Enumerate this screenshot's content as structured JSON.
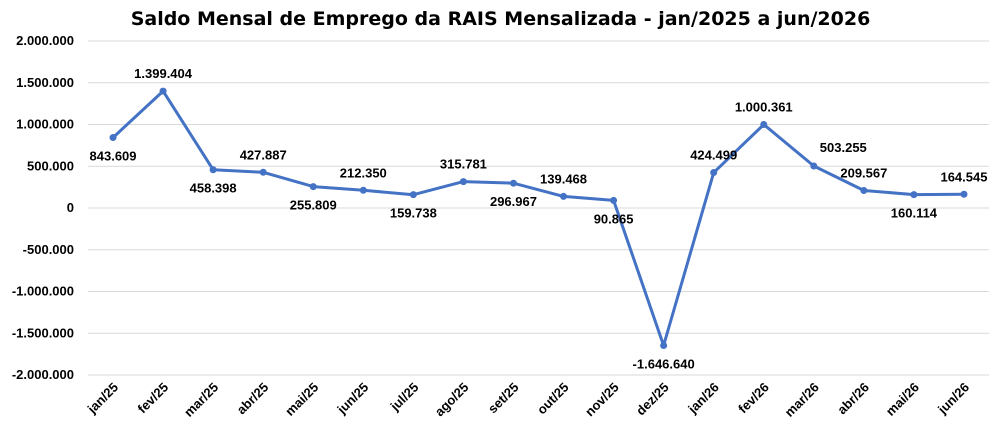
{
  "chart_data": {
    "type": "line",
    "title": "Saldo Mensal de Emprego da RAIS Mensalizada -  jan/2025 a jun/2026",
    "xlabel": "",
    "ylabel": "",
    "ylim": [
      -2000000,
      2000000
    ],
    "yticks": [
      2000000,
      1500000,
      1000000,
      500000,
      0,
      -500000,
      -1000000,
      -1500000,
      -2000000
    ],
    "ytick_labels": [
      "2.000.000",
      "1.500.000",
      "1.000.000",
      "500.000",
      "0",
      "-500.000",
      "-1.000.000",
      "-1.500.000",
      "-2.000.000"
    ],
    "grid": true,
    "legend": "none",
    "line_color": "#4472c4",
    "categories": [
      "jan/25",
      "fev/25",
      "mar/25",
      "abr/25",
      "mai/25",
      "jun/25",
      "jul/25",
      "ago/25",
      "set/25",
      "out/25",
      "nov/25",
      "dez/25",
      "jan/26",
      "fev/26",
      "mar/26",
      "abr/26",
      "mai/26",
      "jun/26"
    ],
    "values": [
      843609,
      1399404,
      458398,
      427887,
      255809,
      212350,
      159738,
      315781,
      296967,
      139468,
      90865,
      -1646640,
      424499,
      1000361,
      503255,
      209567,
      160114,
      164545
    ],
    "data_labels": [
      "843.609",
      "1.399.404",
      "458.398",
      "427.887",
      "255.809",
      "212.350",
      "159.738",
      "315.781",
      "296.967",
      "139.468",
      "90.865",
      "-1.646.640",
      "424.499",
      "1.000.361",
      "503.255",
      "209.567",
      "160.114",
      "164.545"
    ],
    "data_label_positions": [
      "below",
      "above",
      "below",
      "above",
      "below",
      "above",
      "below",
      "above",
      "below",
      "above",
      "below",
      "below",
      "above",
      "above",
      "right",
      "above",
      "below",
      "above"
    ]
  }
}
